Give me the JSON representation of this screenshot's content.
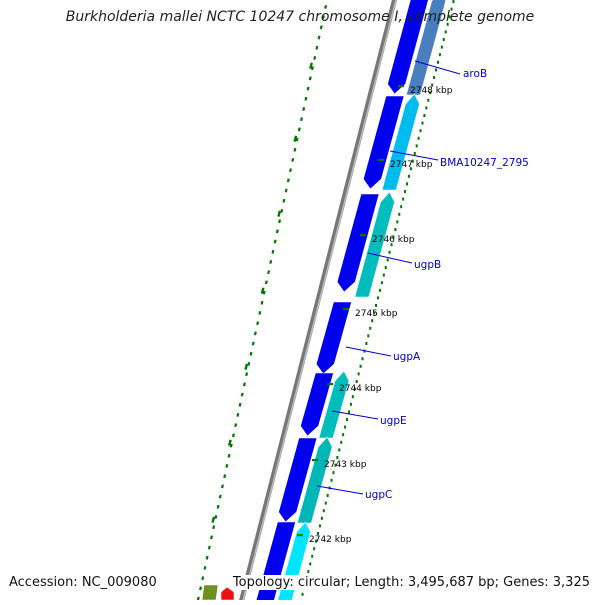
{
  "title": "Burkholderia mallei NCTC 10247 chromosome I, complete genome",
  "accession": "Accession: NC_009080",
  "topology": "Topology: circular; Length: 3,495,687 bp; Genes: 3,325",
  "colors": {
    "backbone": "#888888",
    "forward_gene": "#0000ee",
    "reverse_gene": "#00cccc",
    "tick": "#007700",
    "label_line": "#0000cc",
    "label_text": "#0000cc"
  },
  "scale_labels": [
    "2748 kbp",
    "2747 kbp",
    "2746 kbp",
    "2745 kbp",
    "2744 kbp",
    "2743 kbp",
    "2742 kbp"
  ],
  "genes": [
    {
      "name": "aroB",
      "strand": "reverse"
    },
    {
      "name": "BMA10247_2795",
      "strand": "reverse"
    },
    {
      "name": "ugpB",
      "strand": "reverse"
    },
    {
      "name": "ugpA",
      "strand": "forward"
    },
    {
      "name": "ugpE",
      "strand": "reverse"
    },
    {
      "name": "ugpC",
      "strand": "reverse"
    }
  ]
}
